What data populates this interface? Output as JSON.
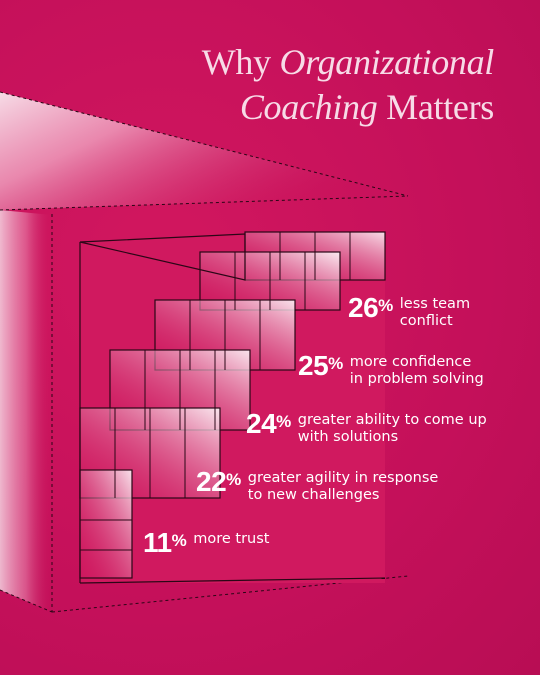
{
  "title": {
    "part1": "Why ",
    "emphasis1": "Organizational",
    "emphasis2": "Coaching",
    "part2": " Matters"
  },
  "stats": [
    {
      "value": "26",
      "unit": "%",
      "line1": "less team",
      "line2": "conflict"
    },
    {
      "value": "25",
      "unit": "%",
      "line1": "more confidence",
      "line2": "in problem solving"
    },
    {
      "value": "24",
      "unit": "%",
      "line1": "greater ability to come up",
      "line2": "with solutions"
    },
    {
      "value": "22",
      "unit": "%",
      "line1": "greater agility in response",
      "line2": "to new challenges"
    },
    {
      "value": "11",
      "unit": "%",
      "line1": "more trust",
      "line2": ""
    }
  ],
  "colors": {
    "background": "#c8115a",
    "title": "#f7dbe7",
    "text": "#ffffff",
    "line": "#2a0616"
  }
}
